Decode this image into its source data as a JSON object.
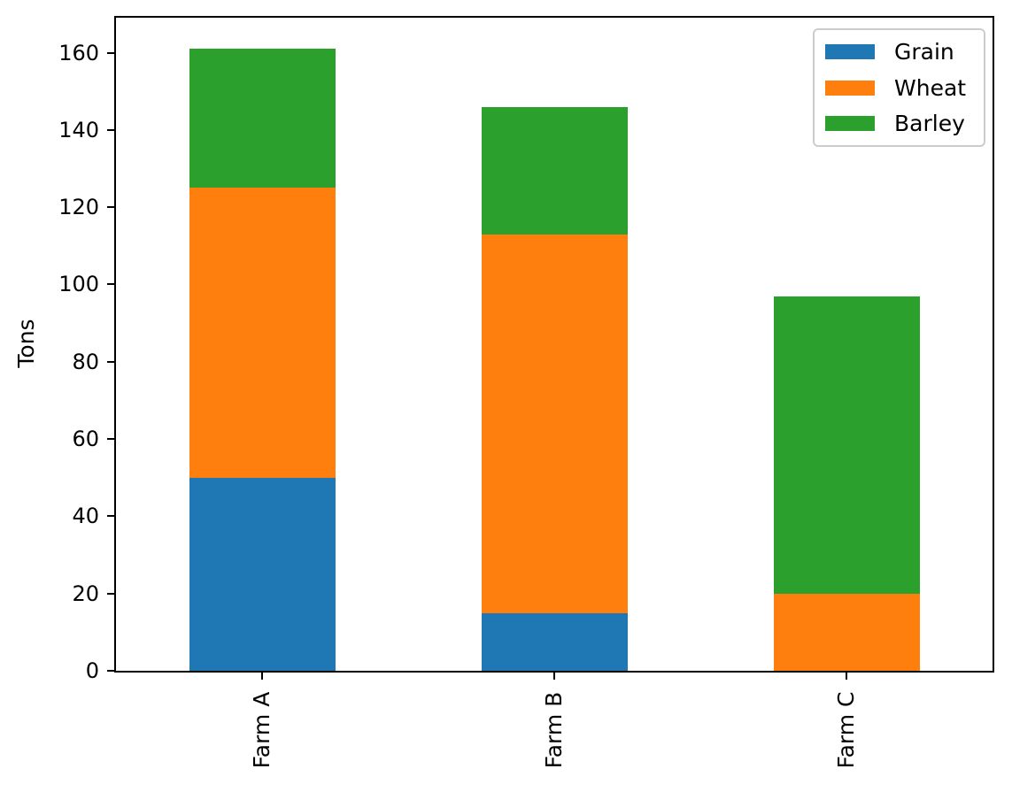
{
  "chart_data": {
    "type": "bar",
    "stacked": true,
    "title": "",
    "xlabel": "",
    "ylabel": "Tons",
    "categories": [
      "Farm A",
      "Farm B",
      "Farm C"
    ],
    "series": [
      {
        "name": "Grain",
        "color": "#1f77b4",
        "values": [
          50,
          15,
          0
        ]
      },
      {
        "name": "Wheat",
        "color": "#ff7f0e",
        "values": [
          75,
          98,
          20
        ]
      },
      {
        "name": "Barley",
        "color": "#2ca02c",
        "values": [
          36,
          33,
          77
        ]
      }
    ],
    "totals": [
      161,
      146,
      97
    ],
    "yticks": [
      0,
      20,
      40,
      60,
      80,
      100,
      120,
      140,
      160
    ],
    "ylim": [
      0,
      169.05
    ],
    "grid": false,
    "legend_position": "upper right",
    "bar_width_fraction": 0.5,
    "xtick_rotation": 90,
    "spine_color": "#000000",
    "legend_border_color": "#cccccc"
  }
}
